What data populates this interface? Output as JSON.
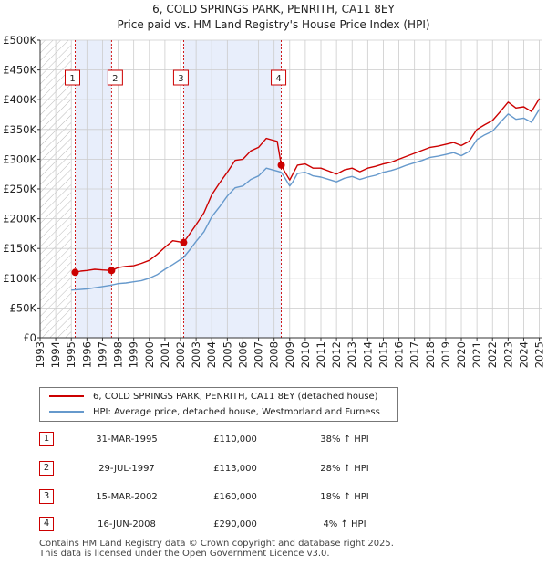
{
  "chart_data": {
    "type": "line",
    "title": "6, COLD SPRINGS PARK, PENRITH, CA11 8EY",
    "subtitle": "Price paid vs. HM Land Registry's House Price Index (HPI)",
    "xlabel": "",
    "ylabel": "",
    "xlim": [
      1993,
      2025.2
    ],
    "ylim": [
      0,
      500000
    ],
    "x_ticks": [
      "1993",
      "1994",
      "1995",
      "1996",
      "1997",
      "1998",
      "1999",
      "2000",
      "2001",
      "2002",
      "2003",
      "2004",
      "2005",
      "2006",
      "2007",
      "2008",
      "2009",
      "2010",
      "2011",
      "2012",
      "2013",
      "2014",
      "2015",
      "2016",
      "2017",
      "2018",
      "2019",
      "2020",
      "2021",
      "2022",
      "2023",
      "2024",
      "2025"
    ],
    "y_ticks": [
      {
        "value": 0,
        "label": "£0"
      },
      {
        "value": 50000,
        "label": "£50K"
      },
      {
        "value": 100000,
        "label": "£100K"
      },
      {
        "value": 150000,
        "label": "£150K"
      },
      {
        "value": 200000,
        "label": "£200K"
      },
      {
        "value": 250000,
        "label": "£250K"
      },
      {
        "value": 300000,
        "label": "£300K"
      },
      {
        "value": 350000,
        "label": "£350K"
      },
      {
        "value": 400000,
        "label": "£400K"
      },
      {
        "value": 450000,
        "label": "£450K"
      },
      {
        "value": 500000,
        "label": "£500K"
      }
    ],
    "grid": true,
    "series": [
      {
        "name": "6, COLD SPRINGS PARK, PENRITH, CA11 8EY (detached house)",
        "color": "#cc0000",
        "x": [
          1995.25,
          1995.6,
          1996.0,
          1996.5,
          1997.0,
          1997.58,
          1998.0,
          1998.5,
          1999.0,
          1999.5,
          2000.0,
          2000.5,
          2001.0,
          2001.5,
          2002.2,
          2002.6,
          2003.0,
          2003.5,
          2004.0,
          2004.5,
          2005.0,
          2005.5,
          2006.0,
          2006.5,
          2007.0,
          2007.5,
          2007.9,
          2008.2,
          2008.46,
          2008.7,
          2009.0,
          2009.2,
          2009.5,
          2010.0,
          2010.5,
          2011.0,
          2011.5,
          2012.0,
          2012.5,
          2013.0,
          2013.5,
          2014.0,
          2014.5,
          2015.0,
          2015.5,
          2016.0,
          2016.5,
          2017.0,
          2017.5,
          2018.0,
          2018.5,
          2019.0,
          2019.5,
          2020.0,
          2020.5,
          2021.0,
          2021.5,
          2022.0,
          2022.5,
          2023.0,
          2023.5,
          2024.0,
          2024.5,
          2025.0
        ],
        "y": [
          110000,
          112000,
          113000,
          115000,
          114000,
          113000,
          118000,
          120000,
          121000,
          125000,
          130000,
          140000,
          152000,
          163000,
          160000,
          175000,
          190000,
          210000,
          240000,
          260000,
          278000,
          298000,
          300000,
          314000,
          320000,
          335000,
          332000,
          330000,
          290000,
          278000,
          265000,
          275000,
          290000,
          292000,
          285000,
          285000,
          280000,
          275000,
          282000,
          285000,
          279000,
          285000,
          288000,
          292000,
          295000,
          300000,
          305000,
          310000,
          315000,
          320000,
          322000,
          325000,
          328000,
          323000,
          330000,
          350000,
          358000,
          365000,
          380000,
          396000,
          386000,
          388000,
          380000,
          402000
        ]
      },
      {
        "name": "HPI: Average price, detached house, Westmorland and Furness",
        "color": "#6699cc",
        "x": [
          1995.0,
          1995.5,
          1996.0,
          1996.5,
          1997.0,
          1997.5,
          1998.0,
          1998.5,
          1999.0,
          1999.5,
          2000.0,
          2000.5,
          2001.0,
          2001.5,
          2002.2,
          2002.6,
          2003.0,
          2003.5,
          2004.0,
          2004.5,
          2005.0,
          2005.5,
          2006.0,
          2006.5,
          2007.0,
          2007.5,
          2007.9,
          2008.2,
          2008.46,
          2008.7,
          2009.0,
          2009.2,
          2009.5,
          2010.0,
          2010.5,
          2011.0,
          2011.5,
          2012.0,
          2012.5,
          2013.0,
          2013.5,
          2014.0,
          2014.5,
          2015.0,
          2015.5,
          2016.0,
          2016.5,
          2017.0,
          2017.5,
          2018.0,
          2018.5,
          2019.0,
          2019.5,
          2020.0,
          2020.5,
          2021.0,
          2021.5,
          2022.0,
          2022.5,
          2023.0,
          2023.5,
          2024.0,
          2024.5,
          2025.0
        ],
        "y": [
          80000,
          81000,
          82000,
          84000,
          86000,
          88000,
          91000,
          92000,
          94000,
          96000,
          100000,
          106000,
          115000,
          123000,
          135000,
          148000,
          162000,
          178000,
          203000,
          220000,
          238000,
          252000,
          255000,
          266000,
          272000,
          285000,
          282000,
          280000,
          278000,
          268000,
          255000,
          262000,
          276000,
          278000,
          272000,
          270000,
          266000,
          262000,
          268000,
          271000,
          266000,
          270000,
          273000,
          278000,
          281000,
          285000,
          290000,
          294000,
          298000,
          303000,
          305000,
          308000,
          311000,
          306000,
          313000,
          333000,
          341000,
          347000,
          362000,
          376000,
          367000,
          369000,
          362000,
          384000
        ]
      }
    ],
    "transactions": [
      {
        "id": "1",
        "x": 1995.25,
        "price": 110000,
        "date": "31-MAR-1995",
        "price_label": "£110,000",
        "hpi": "38% ↑ HPI"
      },
      {
        "id": "2",
        "x": 1997.58,
        "price": 113000,
        "date": "29-JUL-1997",
        "price_label": "£113,000",
        "hpi": "28% ↑ HPI"
      },
      {
        "id": "3",
        "x": 2002.2,
        "price": 160000,
        "date": "15-MAR-2002",
        "price_label": "£160,000",
        "hpi": "18% ↑ HPI"
      },
      {
        "id": "4",
        "x": 2008.46,
        "price": 290000,
        "date": "16-JUN-2008",
        "price_label": "£290,000",
        "hpi": "4% ↑ HPI"
      }
    ],
    "shaded_periods": [
      [
        1995.25,
        1997.58
      ],
      [
        2002.2,
        2008.46
      ]
    ],
    "hatched_period": [
      1993,
      1995.0
    ],
    "legend": {
      "red": "6, COLD SPRINGS PARK, PENRITH, CA11 8EY (detached house)",
      "blue": "HPI: Average price, detached house, Westmorland and Furness"
    }
  },
  "colors": {
    "red": "#cc0000",
    "blue": "#6699cc",
    "shade": "#e8eefb",
    "grid": "#cccccc"
  },
  "footer": "Contains HM Land Registry data © Crown copyright and database right 2025.\nThis data is licensed under the Open Government Licence v3.0."
}
